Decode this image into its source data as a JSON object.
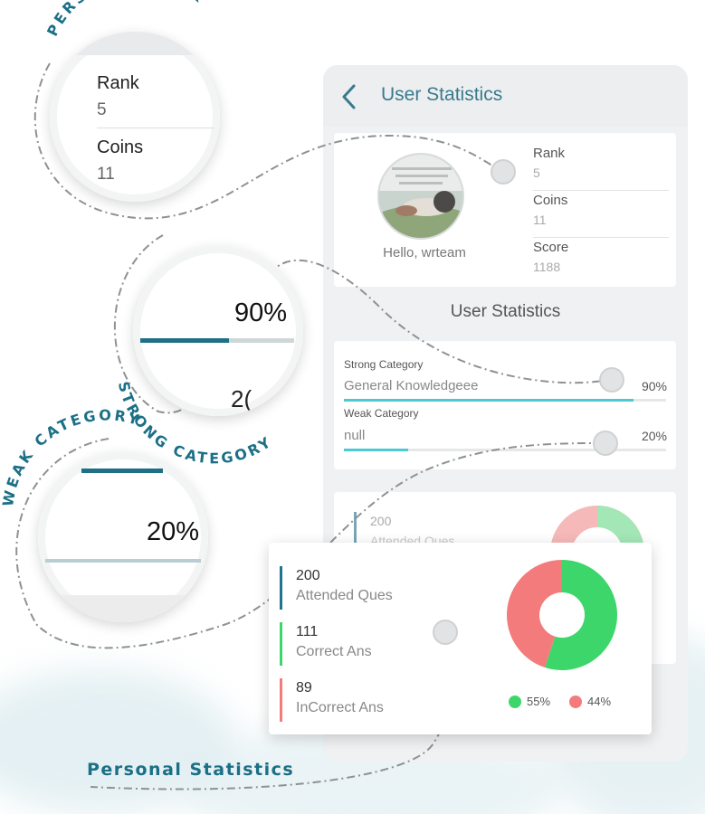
{
  "colors": {
    "accent": "#1b6f86",
    "title": "#3b7a8e",
    "bar_fill": "#4cc9d3",
    "correct": "#3dd66a",
    "incorrect": "#f47b7b",
    "attended": "#1f7590"
  },
  "callouts": {
    "personal_rank": "PERSONAL RANK",
    "strong_category": "STRONG CATEGORY",
    "weak_category": "WEAK CATEGORY",
    "personal_statistics": "Personal Statistics"
  },
  "zoom_rank": {
    "rank_label": "Rank",
    "rank_value": "5",
    "coins_label": "Coins",
    "coins_value": "11"
  },
  "zoom_strong": {
    "percent": "90%",
    "partial_text": "2("
  },
  "zoom_weak": {
    "percent": "20%"
  },
  "app": {
    "header": {
      "back_icon": "chevron-left-icon",
      "title": "User Statistics"
    },
    "profile": {
      "greeting": "Hello, wrteam",
      "stats": [
        {
          "label": "Rank",
          "value": "5"
        },
        {
          "label": "Coins",
          "value": "11"
        },
        {
          "label": "Score",
          "value": "1188"
        }
      ]
    },
    "section_title": "User Statistics",
    "categories": {
      "strong": {
        "label": "Strong Category",
        "value": "General Knowledgeee",
        "percent": "90%",
        "fraction": 0.9
      },
      "weak": {
        "label": "Weak Category",
        "value": "null",
        "percent": "20%",
        "fraction": 0.2
      }
    },
    "background_stats": {
      "attended_value": "200",
      "attended_label": "Attended Ques"
    }
  },
  "personal_stats": {
    "items": [
      {
        "value": "200",
        "label": "Attended Ques"
      },
      {
        "value": "111",
        "label": "Correct Ans"
      },
      {
        "value": "89",
        "label": "InCorrect Ans"
      }
    ],
    "legend": [
      {
        "label": "55%",
        "color": "#3dd66a"
      },
      {
        "label": "44%",
        "color": "#f47b7b"
      }
    ],
    "donut": {
      "correct_fraction": 0.55,
      "incorrect_fraction": 0.44
    }
  }
}
